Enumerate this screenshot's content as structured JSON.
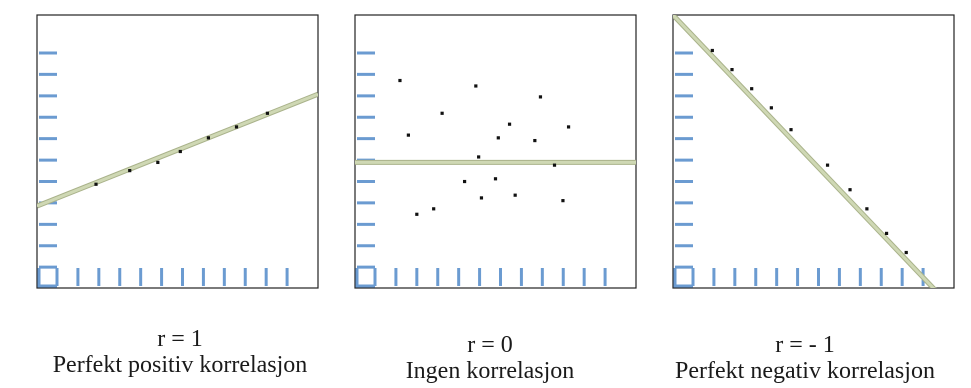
{
  "colors": {
    "frame": "#222222",
    "tick": "#6b9bd1",
    "fit_line": "#cfd8b4",
    "fit_line_edge": "#a9b28a",
    "point": "#111111"
  },
  "chart_data": [
    {
      "type": "scatter",
      "name": "positive",
      "r_label": "r = 1",
      "description": "Perfekt positiv korrelasjon",
      "xlim": [
        0,
        10
      ],
      "ylim": [
        0,
        10
      ],
      "x_ticks": 12,
      "y_ticks": 12,
      "grid": false,
      "points": [
        {
          "x": 2.1,
          "y": 3.8
        },
        {
          "x": 3.3,
          "y": 4.3
        },
        {
          "x": 4.3,
          "y": 4.6
        },
        {
          "x": 5.1,
          "y": 5.0
        },
        {
          "x": 6.1,
          "y": 5.5
        },
        {
          "x": 7.1,
          "y": 5.9
        },
        {
          "x": 8.2,
          "y": 6.4
        }
      ],
      "fit_line": [
        {
          "x": 0,
          "y": 3.0
        },
        {
          "x": 10,
          "y": 7.1
        }
      ]
    },
    {
      "type": "scatter",
      "name": "zero",
      "r_label": "r = 0",
      "description": "Ingen korrelasjon",
      "xlim": [
        0,
        10
      ],
      "ylim": [
        0,
        10
      ],
      "x_ticks": 12,
      "y_ticks": 12,
      "grid": false,
      "points": [
        {
          "x": 1.6,
          "y": 7.6
        },
        {
          "x": 4.3,
          "y": 7.4
        },
        {
          "x": 6.6,
          "y": 7.0
        },
        {
          "x": 3.1,
          "y": 6.4
        },
        {
          "x": 1.9,
          "y": 5.6
        },
        {
          "x": 5.5,
          "y": 6.0
        },
        {
          "x": 7.6,
          "y": 5.9
        },
        {
          "x": 5.1,
          "y": 5.5
        },
        {
          "x": 6.4,
          "y": 5.4
        },
        {
          "x": 4.4,
          "y": 4.8
        },
        {
          "x": 7.1,
          "y": 4.5
        },
        {
          "x": 3.9,
          "y": 3.9
        },
        {
          "x": 5.0,
          "y": 4.0
        },
        {
          "x": 4.5,
          "y": 3.3
        },
        {
          "x": 5.7,
          "y": 3.4
        },
        {
          "x": 7.4,
          "y": 3.2
        },
        {
          "x": 2.8,
          "y": 2.9
        },
        {
          "x": 2.2,
          "y": 2.7
        }
      ],
      "fit_line": [
        {
          "x": 0,
          "y": 4.6
        },
        {
          "x": 10,
          "y": 4.6
        }
      ]
    },
    {
      "type": "scatter",
      "name": "negative",
      "r_label": "r = - 1",
      "description": "Perfekt negativ korrelasjon",
      "xlim": [
        0,
        10
      ],
      "ylim": [
        0,
        10
      ],
      "x_ticks": 12,
      "y_ticks": 12,
      "grid": false,
      "points": [
        {
          "x": 1.4,
          "y": 8.7
        },
        {
          "x": 2.1,
          "y": 8.0
        },
        {
          "x": 2.8,
          "y": 7.3
        },
        {
          "x": 3.5,
          "y": 6.6
        },
        {
          "x": 4.2,
          "y": 5.8
        },
        {
          "x": 5.5,
          "y": 4.5
        },
        {
          "x": 6.3,
          "y": 3.6
        },
        {
          "x": 6.9,
          "y": 2.9
        },
        {
          "x": 7.6,
          "y": 2.0
        },
        {
          "x": 8.3,
          "y": 1.3
        }
      ],
      "fit_line": [
        {
          "x": 0,
          "y": 10
        },
        {
          "x": 10,
          "y": -0.8
        }
      ]
    }
  ]
}
